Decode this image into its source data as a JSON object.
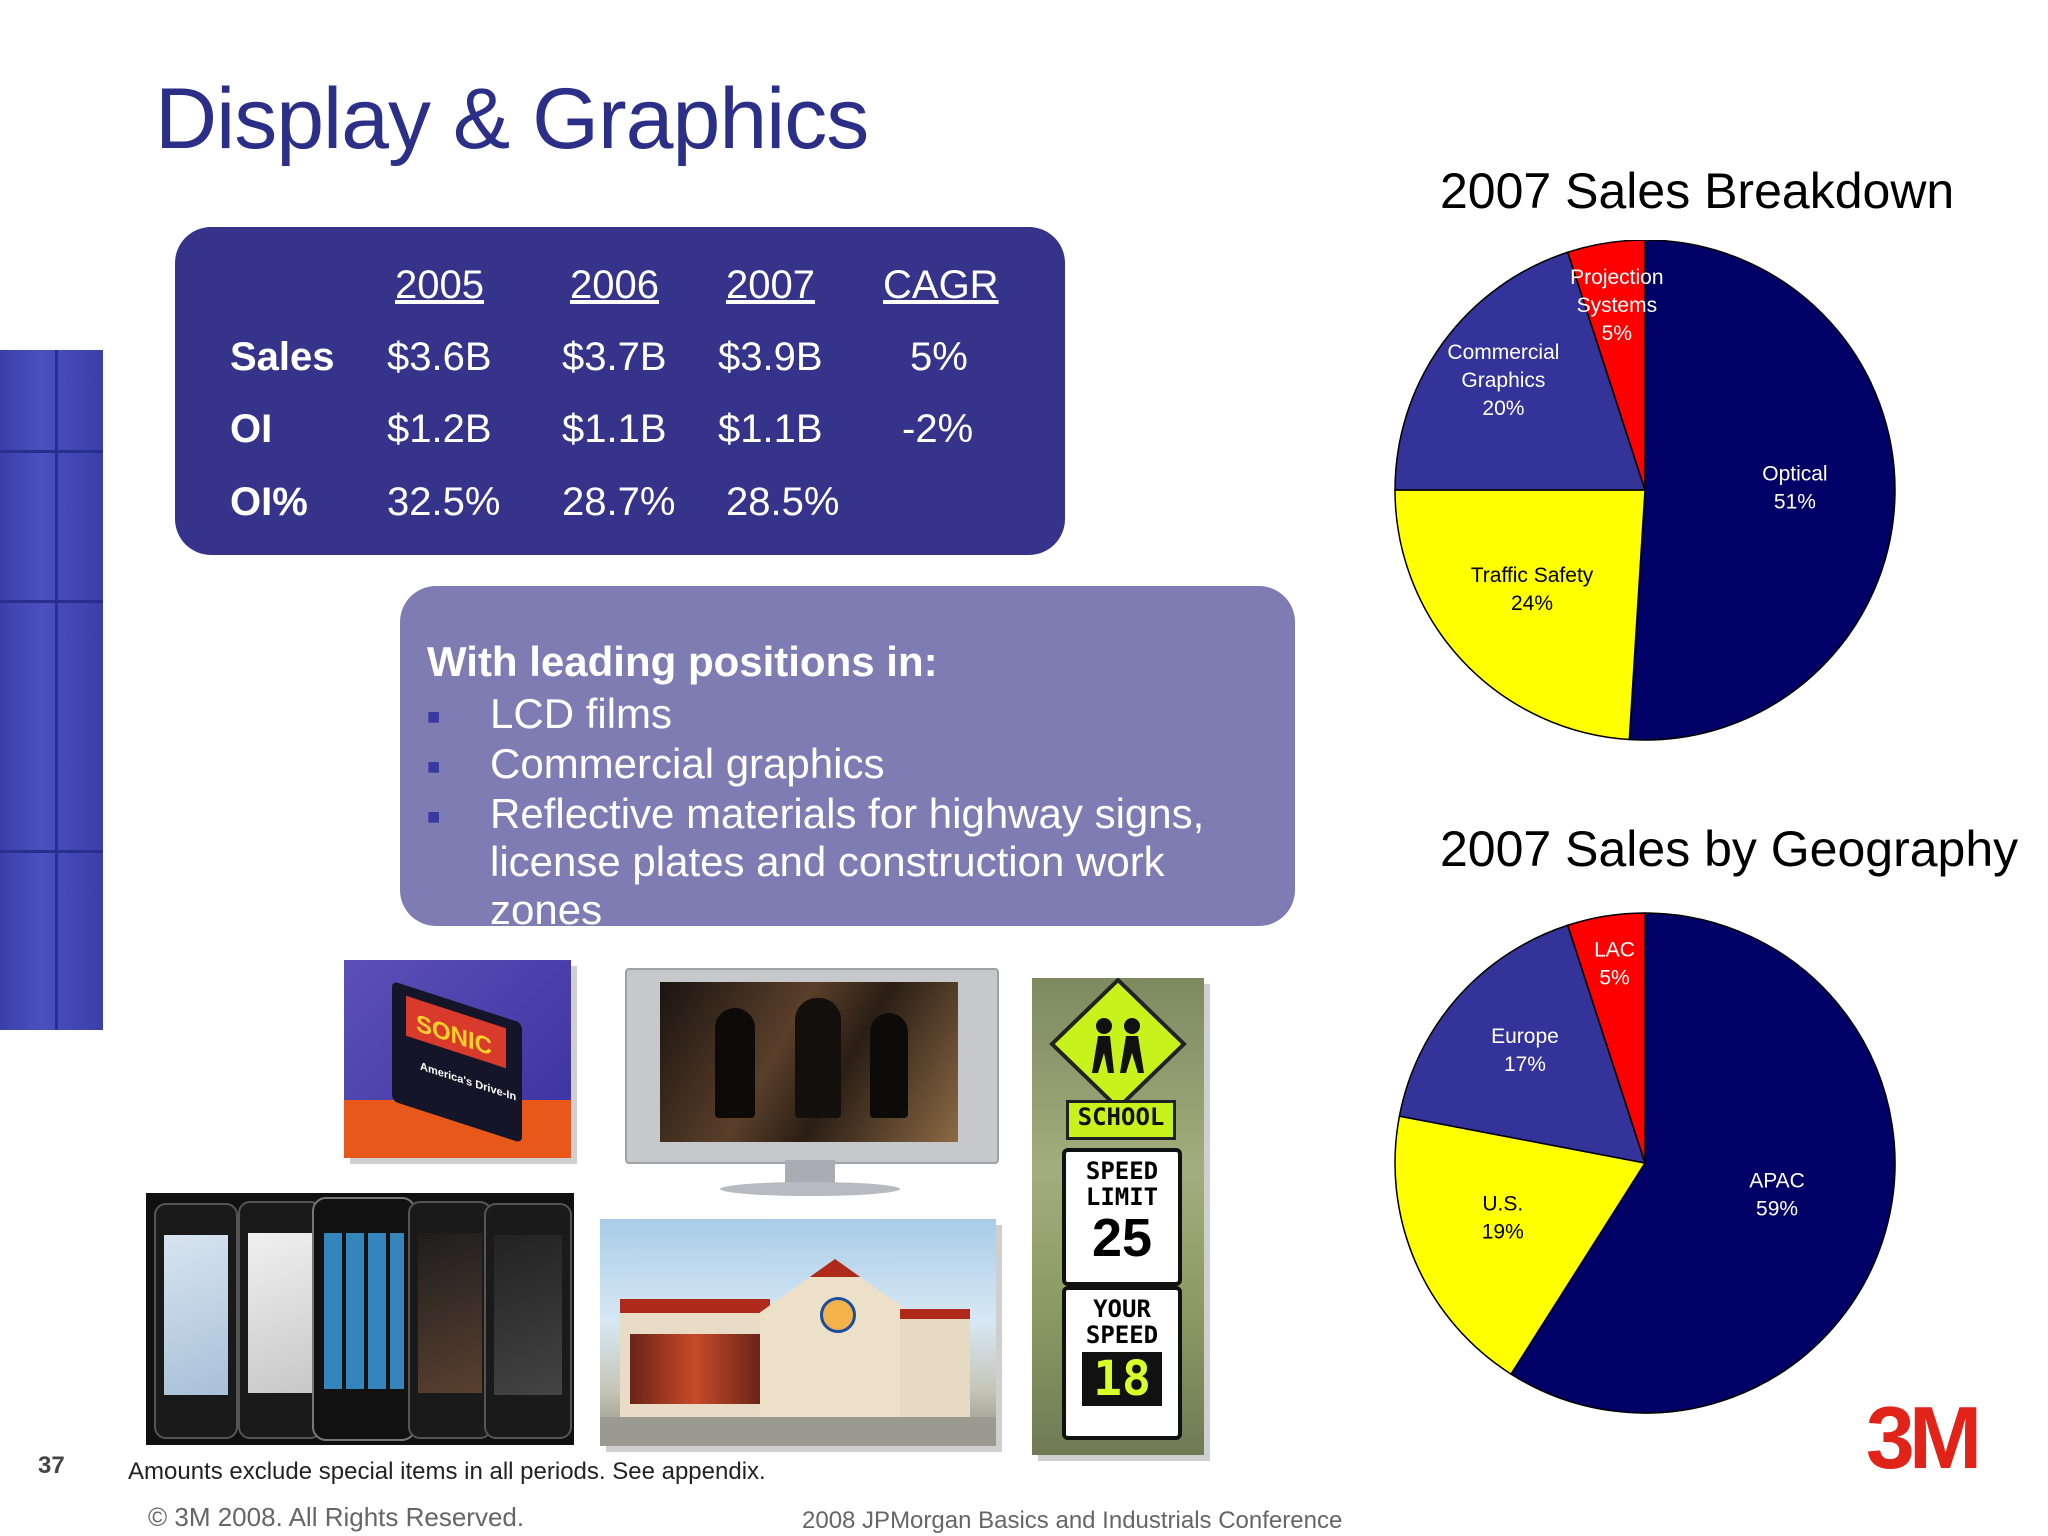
{
  "slide": {
    "title": "Display & Graphics",
    "page_number": "37",
    "footnote": "Amounts exclude special items in all periods. See appendix.",
    "copyright": "© 3M 2008.  All Rights Reserved.",
    "conference": "2008 JPMorgan Basics and Industrials Conference",
    "logo_text": "3M"
  },
  "financials": {
    "headers": [
      "2005",
      "2006",
      "2007",
      "CAGR"
    ],
    "rows": [
      {
        "label": "Sales",
        "values": [
          "$3.6B",
          "$3.7B",
          "$3.9B",
          "5%"
        ]
      },
      {
        "label": "OI",
        "values": [
          "$1.2B",
          "$1.1B",
          "$1.1B",
          "-2%"
        ]
      },
      {
        "label": "OI%",
        "values": [
          "32.5%",
          "28.7%",
          "28.5%",
          ""
        ]
      }
    ]
  },
  "positions": {
    "heading": "With leading positions in:",
    "items": [
      "LCD films",
      "Commercial graphics",
      "Reflective materials for highway signs, license plates and construction work zones"
    ]
  },
  "images": {
    "sonic_sign": "SONIC",
    "sonic_tagline": "America's Drive-In",
    "sign_school": "SCHOOL",
    "sign_speed_limit": "SPEED LIMIT",
    "sign_speed_value": "25",
    "sign_your_speed": "YOUR SPEED",
    "sign_your_speed_value": "18"
  },
  "chart_data": [
    {
      "type": "pie",
      "title": "2007 Sales Breakdown",
      "slices": [
        {
          "label": "Optical",
          "value": 51,
          "display": "51%",
          "color": "#000066"
        },
        {
          "label": "Traffic Safety",
          "value": 24,
          "display": "24%",
          "color": "#ffff00"
        },
        {
          "label": "Commercial Graphics",
          "value": 20,
          "display": "20%",
          "color": "#333399"
        },
        {
          "label": "Projection Systems",
          "value": 5,
          "display": "5%",
          "color": "#ff0000"
        }
      ]
    },
    {
      "type": "pie",
      "title": "2007 Sales by Geography",
      "slices": [
        {
          "label": "APAC",
          "value": 59,
          "display": "59%",
          "color": "#000066"
        },
        {
          "label": "U.S.",
          "value": 19,
          "display": "19%",
          "color": "#ffff00"
        },
        {
          "label": "Europe",
          "value": 17,
          "display": "17%",
          "color": "#333399"
        },
        {
          "label": "LAC",
          "value": 5,
          "display": "5%",
          "color": "#ff0000"
        }
      ]
    }
  ]
}
